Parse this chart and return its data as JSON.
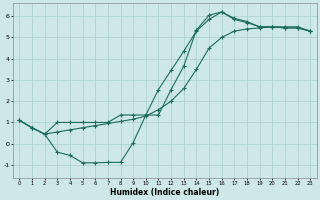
{
  "title": "",
  "xlabel": "Humidex (Indice chaleur)",
  "ylabel": "",
  "background_color": "#cde8e6",
  "grid_color": "#aacfcc",
  "line_color": "#1e6b5e",
  "xlim": [
    -0.5,
    23.5
  ],
  "ylim": [
    -1.6,
    6.6
  ],
  "xticks": [
    0,
    1,
    2,
    3,
    4,
    5,
    6,
    7,
    8,
    9,
    10,
    11,
    12,
    13,
    14,
    15,
    16,
    17,
    18,
    19,
    20,
    21,
    22,
    23
  ],
  "yticks": [
    -1,
    0,
    1,
    2,
    3,
    4,
    5,
    6
  ],
  "line1_x": [
    0,
    1,
    2,
    3,
    4,
    5,
    6,
    7,
    8,
    9,
    10,
    11,
    12,
    13,
    14,
    15,
    16,
    17,
    18,
    19,
    20,
    21,
    22,
    23
  ],
  "line1_y": [
    1.1,
    0.75,
    0.45,
    -0.4,
    -0.55,
    -0.9,
    -0.9,
    -0.88,
    -0.88,
    0.05,
    1.35,
    2.55,
    3.45,
    4.35,
    5.3,
    5.85,
    6.2,
    5.9,
    5.75,
    5.5,
    5.5,
    5.45,
    5.45,
    5.3
  ],
  "line2_x": [
    0,
    1,
    2,
    3,
    4,
    5,
    6,
    7,
    8,
    9,
    10,
    11,
    12,
    13,
    14,
    15,
    16,
    17,
    18,
    19,
    20,
    21,
    22,
    23
  ],
  "line2_y": [
    1.1,
    0.75,
    0.45,
    1.0,
    1.0,
    1.0,
    1.0,
    1.0,
    1.35,
    1.35,
    1.35,
    1.35,
    2.55,
    3.65,
    5.35,
    6.05,
    6.2,
    5.85,
    5.7,
    5.5,
    5.5,
    5.45,
    5.45,
    5.3
  ],
  "line3_x": [
    0,
    1,
    2,
    3,
    4,
    5,
    6,
    7,
    8,
    9,
    10,
    11,
    12,
    13,
    14,
    15,
    16,
    17,
    18,
    19,
    20,
    21,
    22,
    23
  ],
  "line3_y": [
    1.1,
    0.75,
    0.45,
    0.55,
    0.65,
    0.75,
    0.85,
    0.95,
    1.05,
    1.15,
    1.3,
    1.6,
    2.0,
    2.6,
    3.5,
    4.5,
    5.0,
    5.3,
    5.4,
    5.45,
    5.5,
    5.5,
    5.5,
    5.3
  ]
}
